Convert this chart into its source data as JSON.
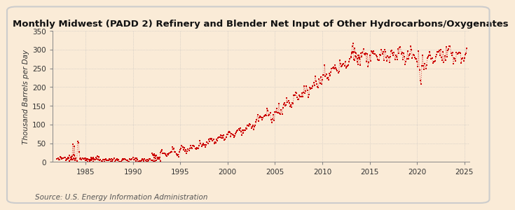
{
  "title": "Monthly Midwest (PADD 2) Refinery and Blender Net Input of Other Hydrocarbons/Oxygenates",
  "ylabel": "Thousand Barrels per Day",
  "source": "Source: U.S. Energy Information Administration",
  "background_color": "#faebd7",
  "plot_bg_color": "#faebd7",
  "line_color": "#cc0000",
  "grid_color": "#bbbbbb",
  "title_fontsize": 9.5,
  "ylabel_fontsize": 7.5,
  "source_fontsize": 7.5,
  "xlim": [
    1981.5,
    2025.5
  ],
  "ylim": [
    0,
    350
  ],
  "yticks": [
    0,
    50,
    100,
    150,
    200,
    250,
    300,
    350
  ],
  "xticks": [
    1985,
    1990,
    1995,
    2000,
    2005,
    2010,
    2015,
    2020,
    2025
  ]
}
